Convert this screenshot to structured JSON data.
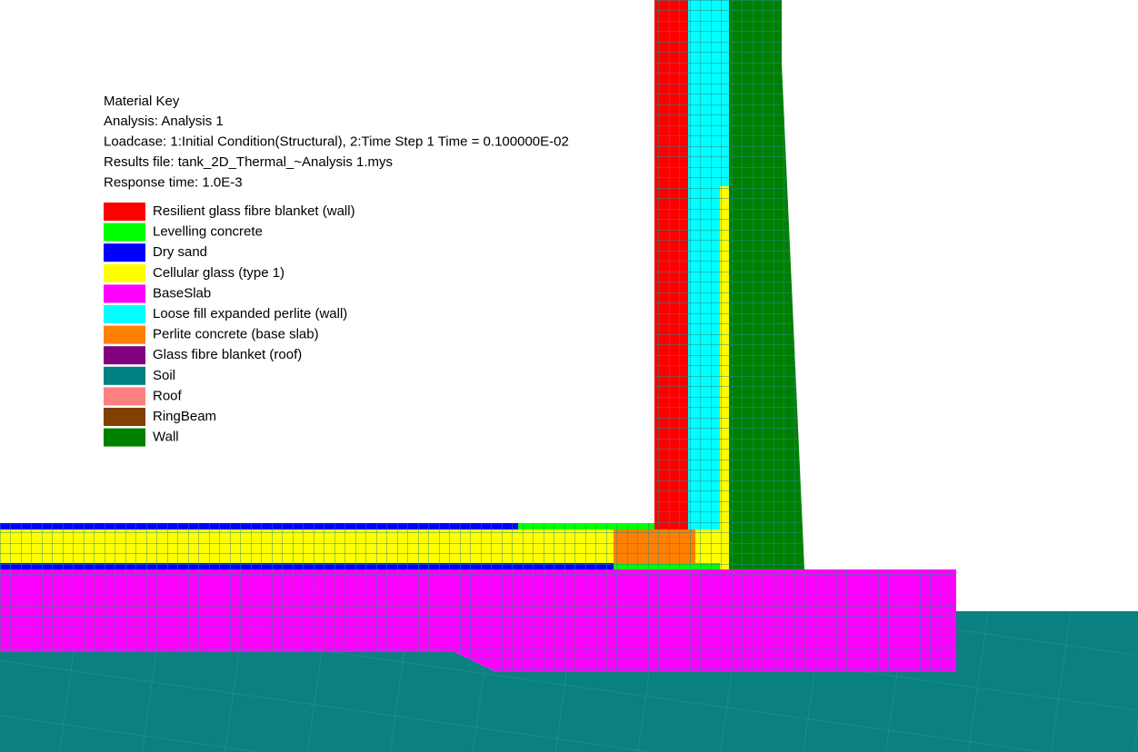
{
  "material_key": {
    "title": "Material Key",
    "lines": [
      "Analysis: Analysis 1",
      "Loadcase: 1:Initial Condition(Structural), 2:Time Step 1 Time = 0.100000E-02",
      "Results file: tank_2D_Thermal_~Analysis 1.mys",
      "Response time: 1.0E-3"
    ],
    "materials": [
      {
        "name": "Resilient glass fibre blanket (wall)",
        "color": "#ff0000"
      },
      {
        "name": "Levelling concrete",
        "color": "#00ff00"
      },
      {
        "name": "Dry sand",
        "color": "#0000ff"
      },
      {
        "name": "Cellular glass (type 1)",
        "color": "#ffff00"
      },
      {
        "name": "BaseSlab",
        "color": "#ff00ff"
      },
      {
        "name": "Loose fill expanded perlite (wall)",
        "color": "#00ffff"
      },
      {
        "name": "Perlite concrete (base slab)",
        "color": "#ff8000"
      },
      {
        "name": "Glass fibre blanket (roof)",
        "color": "#800080"
      },
      {
        "name": "Soil",
        "color": "#008080"
      },
      {
        "name": "Roof",
        "color": "#ff8080"
      },
      {
        "name": "RingBeam",
        "color": "#804000"
      },
      {
        "name": "Wall",
        "color": "#008000"
      }
    ]
  }
}
